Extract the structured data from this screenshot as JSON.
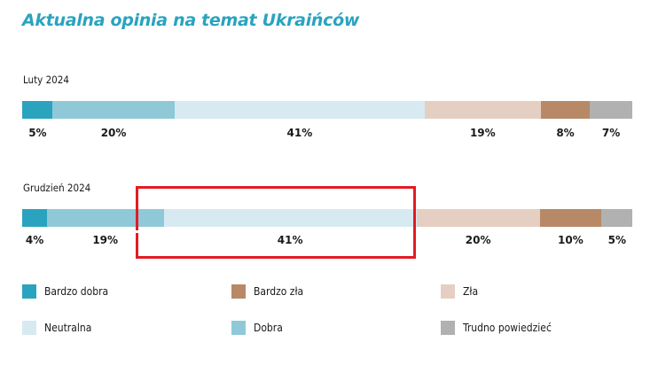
{
  "chart_data": {
    "type": "bar",
    "orientation": "horizontal-stacked-100",
    "title": "Aktualna opinia na temat Ukraińców",
    "categories": [
      "Luty 2024",
      "Grudzień 2024"
    ],
    "series": [
      {
        "name": "Bardzo dobra",
        "color": "#2aa3bf",
        "values": [
          5,
          4
        ]
      },
      {
        "name": "Dobra",
        "color": "#8fc9d8",
        "values": [
          20,
          19
        ]
      },
      {
        "name": "Neutralna",
        "color": "#d7eaf1",
        "values": [
          41,
          41
        ]
      },
      {
        "name": "Zła",
        "color": "#e5cfc2",
        "values": [
          19,
          20
        ]
      },
      {
        "name": "Bardzo zła",
        "color": "#b78967",
        "values": [
          8,
          10
        ]
      },
      {
        "name": "Trudno powiedzieć",
        "color": "#b1b1b1",
        "values": [
          7,
          5
        ]
      }
    ],
    "value_labels": [
      [
        "5%",
        "20%",
        "41%",
        "19%",
        "8%",
        "7%"
      ],
      [
        "4%",
        "19%",
        "41%",
        "20%",
        "10%",
        "5%"
      ]
    ],
    "legend_order": [
      0,
      2,
      4,
      1,
      3,
      5
    ]
  }
}
